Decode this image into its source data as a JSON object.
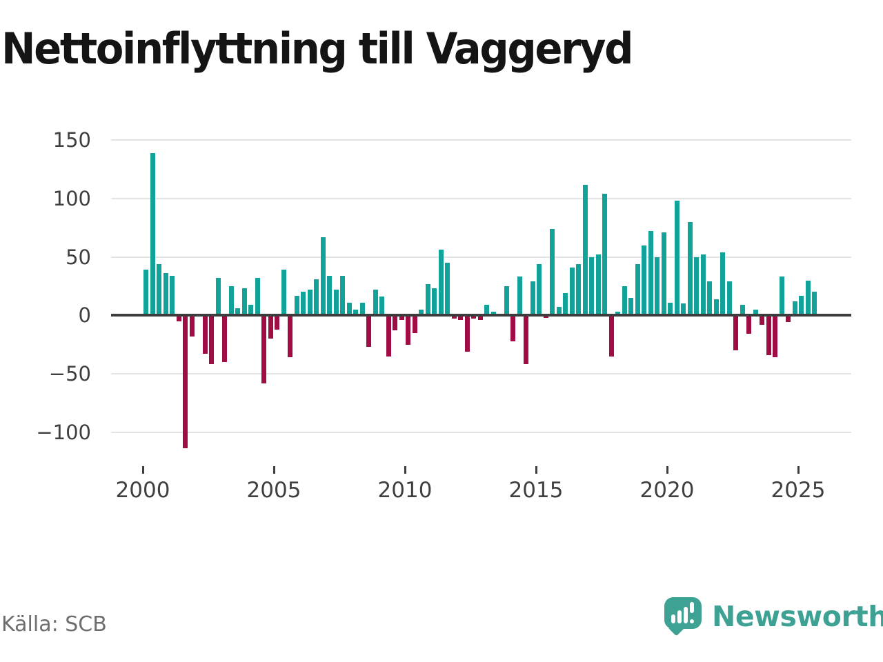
{
  "title": "Nettoinflyttning till Vaggeryd",
  "source": "Källa: SCB",
  "brand": {
    "name": "Newsworthy",
    "icon": "newsworthy-speech-bubble-chart-icon"
  },
  "colors": {
    "positive_bar": "#11a29a",
    "negative_bar": "#a00d44",
    "gridline": "#e4e4e4",
    "baseline": "#3d3d3d",
    "axis_text": "#3f3f3f",
    "title_text": "#141414",
    "source_text": "#6e6e6e",
    "brand_teal": "#3da294"
  },
  "y_axis": {
    "tick_labels": [
      "150",
      "100",
      "50",
      "0",
      "−50",
      "−100"
    ],
    "tick_values": [
      150,
      100,
      50,
      0,
      -50,
      -100
    ]
  },
  "x_axis": {
    "tick_labels": [
      "2000",
      "2005",
      "2010",
      "2015",
      "2020",
      "2025"
    ],
    "tick_years": [
      2000,
      2005,
      2010,
      2015,
      2020,
      2025
    ]
  },
  "chart_data": {
    "type": "bar",
    "title": "Nettoinflyttning till Vaggeryd",
    "xlabel": "",
    "ylabel": "",
    "ylim": [
      -120,
      155
    ],
    "grid": true,
    "legend": false,
    "frequency": "quarterly",
    "categories": [
      "2000 Q1",
      "2000 Q2",
      "2000 Q3",
      "2000 Q4",
      "2001 Q1",
      "2001 Q2",
      "2001 Q3",
      "2001 Q4",
      "2002 Q1",
      "2002 Q2",
      "2002 Q3",
      "2002 Q4",
      "2003 Q1",
      "2003 Q2",
      "2003 Q3",
      "2003 Q4",
      "2004 Q1",
      "2004 Q2",
      "2004 Q3",
      "2004 Q4",
      "2005 Q1",
      "2005 Q2",
      "2005 Q3",
      "2005 Q4",
      "2006 Q1",
      "2006 Q2",
      "2006 Q3",
      "2006 Q4",
      "2007 Q1",
      "2007 Q2",
      "2007 Q3",
      "2007 Q4",
      "2008 Q1",
      "2008 Q2",
      "2008 Q3",
      "2008 Q4",
      "2009 Q1",
      "2009 Q2",
      "2009 Q3",
      "2009 Q4",
      "2010 Q1",
      "2010 Q2",
      "2010 Q3",
      "2010 Q4",
      "2011 Q1",
      "2011 Q2",
      "2011 Q3",
      "2011 Q4",
      "2012 Q1",
      "2012 Q2",
      "2012 Q3",
      "2012 Q4",
      "2013 Q1",
      "2013 Q2",
      "2013 Q3",
      "2013 Q4",
      "2014 Q1",
      "2014 Q2",
      "2014 Q3",
      "2014 Q4",
      "2015 Q1",
      "2015 Q2",
      "2015 Q3",
      "2015 Q4",
      "2016 Q1",
      "2016 Q2",
      "2016 Q3",
      "2016 Q4",
      "2017 Q1",
      "2017 Q2",
      "2017 Q3",
      "2017 Q4",
      "2018 Q1",
      "2018 Q2",
      "2018 Q3",
      "2018 Q4",
      "2019 Q1",
      "2019 Q2",
      "2019 Q3",
      "2019 Q4",
      "2020 Q1",
      "2020 Q2",
      "2020 Q3",
      "2020 Q4",
      "2021 Q1",
      "2021 Q2",
      "2021 Q3",
      "2021 Q4",
      "2022 Q1",
      "2022 Q2",
      "2022 Q3",
      "2022 Q4",
      "2023 Q1",
      "2023 Q2",
      "2023 Q3",
      "2023 Q4",
      "2024 Q1",
      "2024 Q2",
      "2024 Q3",
      "2024 Q4",
      "2025 Q1",
      "2025 Q2",
      "2025 Q3"
    ],
    "values": [
      39,
      139,
      44,
      36,
      34,
      -5,
      -114,
      -18,
      0,
      -33,
      -42,
      32,
      -40,
      25,
      6,
      23,
      9,
      32,
      -58,
      -20,
      -12,
      39,
      -36,
      17,
      20,
      22,
      31,
      67,
      34,
      22,
      34,
      11,
      5,
      11,
      -27,
      22,
      16,
      -35,
      -13,
      -4,
      -25,
      -15,
      5,
      27,
      23,
      56,
      45,
      -3,
      -4,
      -31,
      -3,
      -4,
      9,
      3,
      0,
      25,
      -22,
      33,
      -42,
      29,
      44,
      -2,
      74,
      7,
      19,
      41,
      44,
      112,
      50,
      52,
      104,
      -35,
      3,
      25,
      15,
      44,
      60,
      72,
      50,
      71,
      11,
      98,
      10,
      80,
      50,
      52,
      29,
      14,
      54,
      29,
      -30,
      9,
      -16,
      5,
      -8,
      -34,
      -36,
      33,
      -6,
      12,
      17,
      30,
      20
    ]
  }
}
